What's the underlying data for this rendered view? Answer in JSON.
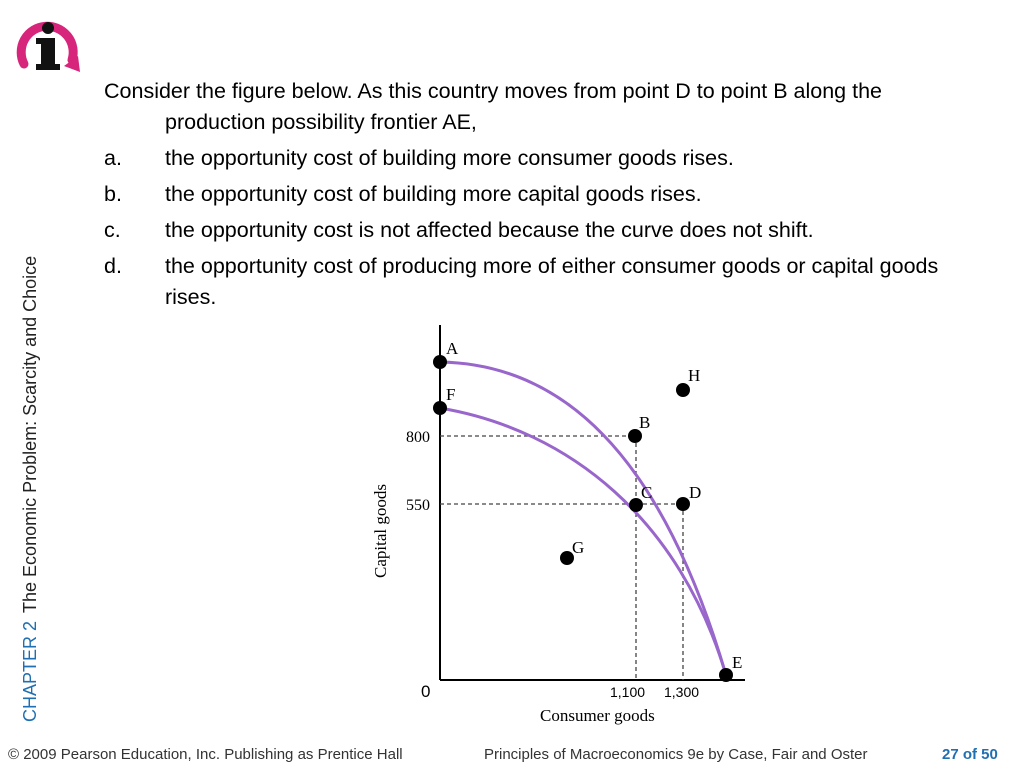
{
  "sidebar": {
    "chapter": "CHAPTER 2",
    "title": "The Economic Problem:  Scarcity and Choice"
  },
  "question": {
    "stem": "Consider the figure below.  As this country moves from point D to point B along the production possibility frontier AE,",
    "options": [
      {
        "letter": "a.",
        "text": "the opportunity cost of building more consumer goods rises."
      },
      {
        "letter": "b.",
        "text": "the opportunity cost of building more capital goods rises."
      },
      {
        "letter": "c.",
        "text": "the opportunity cost is not affected because the curve does not shift."
      },
      {
        "letter": "d.",
        "text": "the opportunity cost of producing more of either consumer goods or capital goods rises."
      }
    ]
  },
  "chart_data": {
    "type": "line",
    "xlabel": "Consumer goods",
    "ylabel": "Capital goods",
    "origin_label": "0",
    "x_ticks": [
      "1,100",
      "1,300"
    ],
    "y_ticks": [
      "800",
      "550"
    ],
    "series": [
      {
        "label_start": "A",
        "label_end": "E",
        "color": "#9966cc"
      },
      {
        "label_start": "F",
        "label_end": "E",
        "color": "#9966cc"
      }
    ],
    "points": [
      {
        "label": "A"
      },
      {
        "label": "F"
      },
      {
        "label": "B",
        "x": 1100,
        "y": 800
      },
      {
        "label": "C",
        "x": 1100,
        "y": 550
      },
      {
        "label": "D",
        "x": 1300,
        "y": 550
      },
      {
        "label": "E"
      },
      {
        "label": "G"
      },
      {
        "label": "H"
      }
    ]
  },
  "footer": {
    "copyright": "© 2009 Pearson Education, Inc. Publishing as Prentice Hall",
    "book": "Principles of Macroeconomics 9e by Case, Fair and Oster",
    "page": "27 of 50"
  },
  "colors": {
    "accent_blue": "#1f6fb2",
    "curve": "#9966cc",
    "logo": "#d6257b"
  }
}
